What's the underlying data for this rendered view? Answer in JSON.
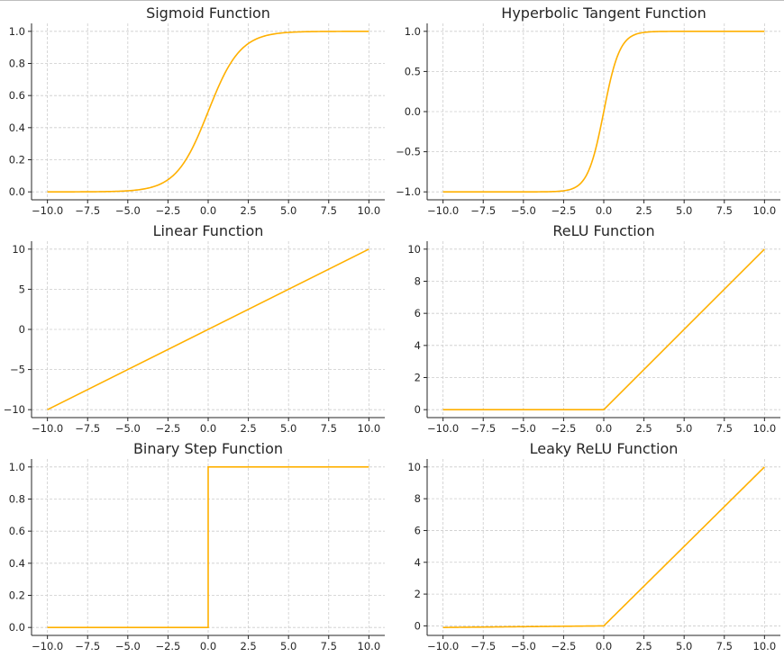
{
  "colors": {
    "line": "#FFB000",
    "grid": "#cccccc",
    "axis": "#262626"
  },
  "chart_data": [
    {
      "type": "line",
      "title": "Sigmoid Function",
      "function": "sigmoid",
      "xlim": [
        -10,
        10
      ],
      "ylim": [
        0,
        1
      ],
      "xticks": [
        -10,
        -7.5,
        -5,
        -2.5,
        0,
        2.5,
        5,
        7.5,
        10
      ],
      "xtick_labels": [
        "−10.0",
        "−7.5",
        "−5.0",
        "−2.5",
        "0.0",
        "2.5",
        "5.0",
        "7.5",
        "10.0"
      ],
      "yticks": [
        0,
        0.2,
        0.4,
        0.6,
        0.8,
        1.0
      ],
      "ytick_labels": [
        "0.0",
        "0.2",
        "0.4",
        "0.6",
        "0.8",
        "1.0"
      ],
      "grid": true,
      "series": [
        {
          "x": [
            -10,
            -7.5,
            -5,
            -2.5,
            0,
            2.5,
            5,
            7.5,
            10
          ],
          "y": [
            0.0,
            0.001,
            0.007,
            0.076,
            0.5,
            0.924,
            0.993,
            0.999,
            1.0
          ]
        }
      ]
    },
    {
      "type": "line",
      "title": "Hyperbolic Tangent Function",
      "function": "tanh",
      "xlim": [
        -10,
        10
      ],
      "ylim": [
        -1,
        1
      ],
      "xticks": [
        -10,
        -7.5,
        -5,
        -2.5,
        0,
        2.5,
        5,
        7.5,
        10
      ],
      "xtick_labels": [
        "−10.0",
        "−7.5",
        "−5.0",
        "−2.5",
        "0.0",
        "2.5",
        "5.0",
        "7.5",
        "10.0"
      ],
      "yticks": [
        -1,
        -0.5,
        0,
        0.5,
        1
      ],
      "ytick_labels": [
        "−1.0",
        "−0.5",
        "0.0",
        "0.5",
        "1.0"
      ],
      "grid": true,
      "series": [
        {
          "x": [
            -10,
            -7.5,
            -5,
            -2.5,
            0,
            2.5,
            5,
            7.5,
            10
          ],
          "y": [
            -1.0,
            -1.0,
            -1.0,
            -0.987,
            0.0,
            0.987,
            1.0,
            1.0,
            1.0
          ]
        }
      ]
    },
    {
      "type": "line",
      "title": "Linear Function",
      "function": "linear",
      "xlim": [
        -10,
        10
      ],
      "ylim": [
        -10,
        10
      ],
      "xticks": [
        -10,
        -7.5,
        -5,
        -2.5,
        0,
        2.5,
        5,
        7.5,
        10
      ],
      "xtick_labels": [
        "−10.0",
        "−7.5",
        "−5.0",
        "−2.5",
        "0.0",
        "2.5",
        "5.0",
        "7.5",
        "10.0"
      ],
      "yticks": [
        -10,
        -5,
        0,
        5,
        10
      ],
      "ytick_labels": [
        "−10",
        "−5",
        "0",
        "5",
        "10"
      ],
      "grid": true,
      "series": [
        {
          "x": [
            -10,
            10
          ],
          "y": [
            -10,
            10
          ]
        }
      ]
    },
    {
      "type": "line",
      "title": "ReLU Function",
      "function": "relu",
      "xlim": [
        -10,
        10
      ],
      "ylim": [
        0,
        10
      ],
      "xticks": [
        -10,
        -7.5,
        -5,
        -2.5,
        0,
        2.5,
        5,
        7.5,
        10
      ],
      "xtick_labels": [
        "−10.0",
        "−7.5",
        "−5.0",
        "−2.5",
        "0.0",
        "2.5",
        "5.0",
        "7.5",
        "10.0"
      ],
      "yticks": [
        0,
        2,
        4,
        6,
        8,
        10
      ],
      "ytick_labels": [
        "0",
        "2",
        "4",
        "6",
        "8",
        "10"
      ],
      "grid": true,
      "series": [
        {
          "x": [
            -10,
            0,
            10
          ],
          "y": [
            0,
            0,
            10
          ]
        }
      ]
    },
    {
      "type": "line",
      "title": "Binary Step Function",
      "function": "binary_step",
      "xlim": [
        -10,
        10
      ],
      "ylim": [
        0,
        1
      ],
      "xticks": [
        -10,
        -7.5,
        -5,
        -2.5,
        0,
        2.5,
        5,
        7.5,
        10
      ],
      "xtick_labels": [
        "−10.0",
        "−7.5",
        "−5.0",
        "−2.5",
        "0.0",
        "2.5",
        "5.0",
        "7.5",
        "10.0"
      ],
      "yticks": [
        0,
        0.2,
        0.4,
        0.6,
        0.8,
        1.0
      ],
      "ytick_labels": [
        "0.0",
        "0.2",
        "0.4",
        "0.6",
        "0.8",
        "1.0"
      ],
      "grid": true,
      "series": [
        {
          "x": [
            -10,
            0,
            0,
            10
          ],
          "y": [
            0,
            0,
            1,
            1
          ]
        }
      ]
    },
    {
      "type": "line",
      "title": "Leaky ReLU Function",
      "function": "leaky_relu",
      "xlim": [
        -10,
        10
      ],
      "ylim": [
        -0.1,
        10
      ],
      "xticks": [
        -10,
        -7.5,
        -5,
        -2.5,
        0,
        2.5,
        5,
        7.5,
        10
      ],
      "xtick_labels": [
        "−10.0",
        "−7.5",
        "−5.0",
        "−2.5",
        "0.0",
        "2.5",
        "5.0",
        "7.5",
        "10.0"
      ],
      "yticks": [
        0,
        2,
        4,
        6,
        8,
        10
      ],
      "ytick_labels": [
        "0",
        "2",
        "4",
        "6",
        "8",
        "10"
      ],
      "grid": true,
      "series": [
        {
          "x": [
            -10,
            0,
            10
          ],
          "y": [
            -0.1,
            0,
            10
          ]
        }
      ]
    }
  ]
}
